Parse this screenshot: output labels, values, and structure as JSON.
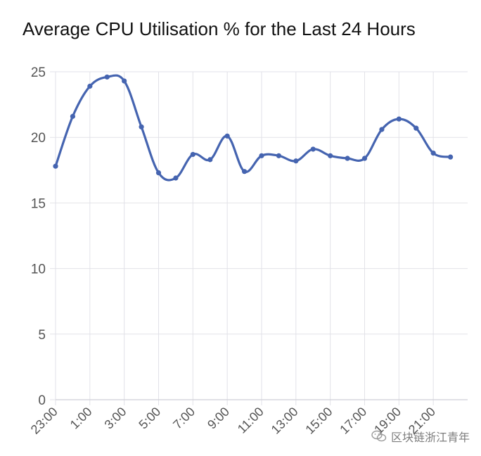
{
  "chart_data": {
    "type": "line",
    "title": "Average CPU Utilisation % for the Last 24 Hours",
    "xlabel": "",
    "ylabel": "",
    "ylim": [
      0,
      25
    ],
    "yticks": [
      0,
      5,
      10,
      15,
      20,
      25
    ],
    "x_tick_labels": [
      "23:00",
      "1:00",
      "3:00",
      "5:00",
      "7:00",
      "9:00",
      "11:00",
      "13:00",
      "15:00",
      "17:00",
      "19:00",
      "21:00"
    ],
    "x": [
      "23:00",
      "0:00",
      "1:00",
      "2:00",
      "3:00",
      "4:00",
      "5:00",
      "6:00",
      "7:00",
      "8:00",
      "9:00",
      "10:00",
      "11:00",
      "12:00",
      "13:00",
      "14:00",
      "15:00",
      "16:00",
      "17:00",
      "18:00",
      "19:00",
      "20:00",
      "21:00",
      "22:00"
    ],
    "values": [
      17.8,
      21.6,
      23.9,
      24.6,
      24.3,
      20.8,
      17.3,
      16.9,
      18.7,
      18.3,
      20.1,
      17.4,
      18.6,
      18.6,
      18.2,
      19.1,
      18.6,
      18.4,
      18.4,
      20.6,
      21.4,
      20.7,
      18.8,
      18.5
    ],
    "grid": true,
    "line_color": "#4564b0",
    "grid_color": "#e2e2e8"
  },
  "watermark": {
    "text": "区块链浙江青年",
    "icon": "wechat-icon"
  }
}
